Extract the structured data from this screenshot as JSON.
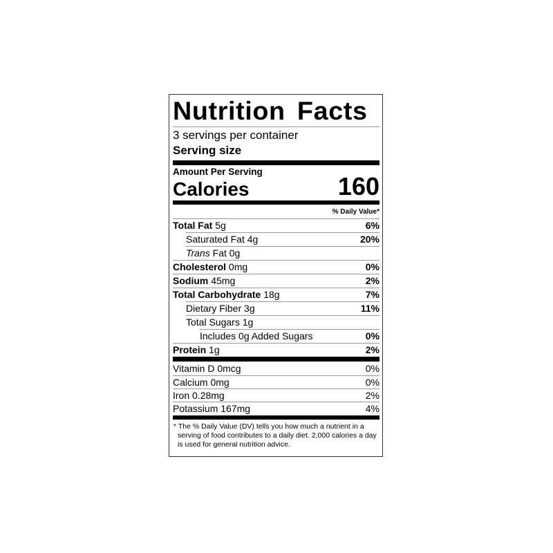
{
  "title": "Nutrition Facts",
  "servings_per_container": "3 servings per container",
  "serving_size_label": "Serving size",
  "amount_per_serving": "Amount Per Serving",
  "calories_label": "Calories",
  "calories_value": "160",
  "daily_value_header": "% Daily Value*",
  "nutrients": [
    {
      "name": "Total Fat",
      "amount": "5g",
      "dv": "6%",
      "bold": true,
      "indent": 0
    },
    {
      "name": "Saturated Fat",
      "amount": "4g",
      "dv": "20%",
      "bold": false,
      "indent": 1
    },
    {
      "name": "Trans",
      "name_suffix": "Fat",
      "amount": "0g",
      "dv": "",
      "bold": false,
      "indent": 1
    },
    {
      "name": "Cholesterol",
      "amount": "0mg",
      "dv": "0%",
      "bold": true,
      "indent": 0
    },
    {
      "name": "Sodium",
      "amount": "45mg",
      "dv": "2%",
      "bold": true,
      "indent": 0
    },
    {
      "name": "Total Carbohydrate",
      "amount": "18g",
      "dv": "7%",
      "bold": true,
      "indent": 0
    },
    {
      "name": "Dietary Fiber",
      "amount": "3g",
      "dv": "11%",
      "bold": false,
      "indent": 1
    },
    {
      "name": "Total Sugars",
      "amount": "1g",
      "dv": "",
      "bold": false,
      "indent": 1
    },
    {
      "name": "Includes 0g Added Sugars",
      "amount": "",
      "dv": "0%",
      "bold": false,
      "indent": 2
    },
    {
      "name": "Protein",
      "amount": "1g",
      "dv": "2%",
      "bold": true,
      "indent": 0
    }
  ],
  "vitamins": [
    {
      "name": "Vitamin D 0mcg",
      "dv": "0%"
    },
    {
      "name": "Calcium 0mg",
      "dv": "0%"
    },
    {
      "name": "Iron 0.28mg",
      "dv": "2%"
    },
    {
      "name": "Potassium 167mg",
      "dv": "4%"
    }
  ],
  "footnote": "* The % Daily Value (DV) tells you how much a nutrient in a serving of food contributes to a daily diet. 2,000 calories a day is used for general nutrition advice."
}
